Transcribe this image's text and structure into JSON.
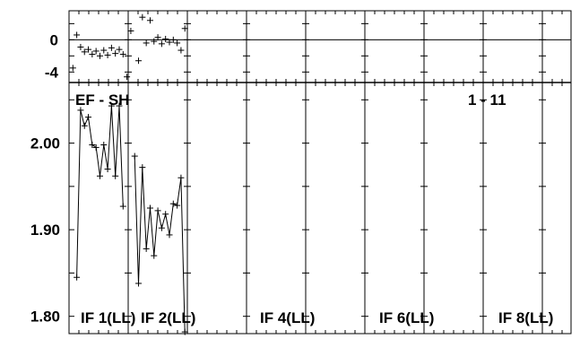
{
  "chart_data": {
    "type": "scatter",
    "title": "EF - SH",
    "range_label": "1 - 11",
    "panels": [
      "IF 1(LL)",
      "IF 2(LL)",
      "IF 4(LL)",
      "IF 6(LL)",
      "IF 8(LL)"
    ],
    "residual": {
      "yticks": [
        "0",
        "-4"
      ],
      "ylim": [
        -5.3,
        3.6
      ],
      "points": [
        {
          "x": 0.2,
          "y": -3.5
        },
        {
          "x": 0.4,
          "y": 0.6
        },
        {
          "x": 0.6,
          "y": -0.9
        },
        {
          "x": 0.8,
          "y": -1.5
        },
        {
          "x": 1.0,
          "y": -1.2
        },
        {
          "x": 1.2,
          "y": -1.8
        },
        {
          "x": 1.4,
          "y": -1.4
        },
        {
          "x": 1.6,
          "y": -2.0
        },
        {
          "x": 1.8,
          "y": -1.3
        },
        {
          "x": 2.0,
          "y": -1.9
        },
        {
          "x": 2.2,
          "y": -1.0
        },
        {
          "x": 2.4,
          "y": -1.7
        },
        {
          "x": 2.6,
          "y": -1.2
        },
        {
          "x": 2.8,
          "y": -1.8
        },
        {
          "x": 3.0,
          "y": -4.6
        },
        {
          "x": 3.2,
          "y": 1.1
        },
        {
          "x": 3.6,
          "y": -2.6
        },
        {
          "x": 3.8,
          "y": 2.8
        },
        {
          "x": 4.0,
          "y": -0.4
        },
        {
          "x": 4.2,
          "y": 2.4
        },
        {
          "x": 4.4,
          "y": -0.2
        },
        {
          "x": 4.6,
          "y": 0.3
        },
        {
          "x": 4.8,
          "y": -0.5
        },
        {
          "x": 5.0,
          "y": 0.1
        },
        {
          "x": 5.2,
          "y": -0.3
        },
        {
          "x": 5.4,
          "y": 0.0
        },
        {
          "x": 5.6,
          "y": -0.4
        },
        {
          "x": 5.8,
          "y": -1.3
        },
        {
          "x": 6.0,
          "y": 1.4
        }
      ]
    },
    "main": {
      "yticks": [
        "2.00",
        "1.90",
        "1.80"
      ],
      "ylim": [
        1.78,
        2.07
      ],
      "series": [
        {
          "points": [
            {
              "x": 0.4,
              "y": 1.845
            },
            {
              "x": 0.6,
              "y": 2.038
            },
            {
              "x": 0.8,
              "y": 2.02
            },
            {
              "x": 1.0,
              "y": 2.03
            },
            {
              "x": 1.2,
              "y": 1.998
            },
            {
              "x": 1.4,
              "y": 1.995
            },
            {
              "x": 1.6,
              "y": 1.962
            },
            {
              "x": 1.8,
              "y": 1.998
            },
            {
              "x": 2.0,
              "y": 1.97
            },
            {
              "x": 2.2,
              "y": 2.043
            },
            {
              "x": 2.4,
              "y": 1.962
            },
            {
              "x": 2.6,
              "y": 2.043
            },
            {
              "x": 2.8,
              "y": 1.927
            }
          ]
        },
        {
          "points": [
            {
              "x": 3.4,
              "y": 1.985
            },
            {
              "x": 3.6,
              "y": 1.838
            },
            {
              "x": 3.8,
              "y": 1.972
            },
            {
              "x": 4.0,
              "y": 1.878
            },
            {
              "x": 4.2,
              "y": 1.925
            },
            {
              "x": 4.4,
              "y": 1.87
            },
            {
              "x": 4.6,
              "y": 1.922
            },
            {
              "x": 4.8,
              "y": 1.902
            },
            {
              "x": 5.0,
              "y": 1.918
            },
            {
              "x": 5.2,
              "y": 1.894
            },
            {
              "x": 5.4,
              "y": 1.93
            },
            {
              "x": 5.6,
              "y": 1.928
            },
            {
              "x": 5.8,
              "y": 1.96
            },
            {
              "x": 6.0,
              "y": 1.782
            }
          ]
        }
      ]
    },
    "xlim": [
      0,
      26
    ],
    "grid": true
  }
}
